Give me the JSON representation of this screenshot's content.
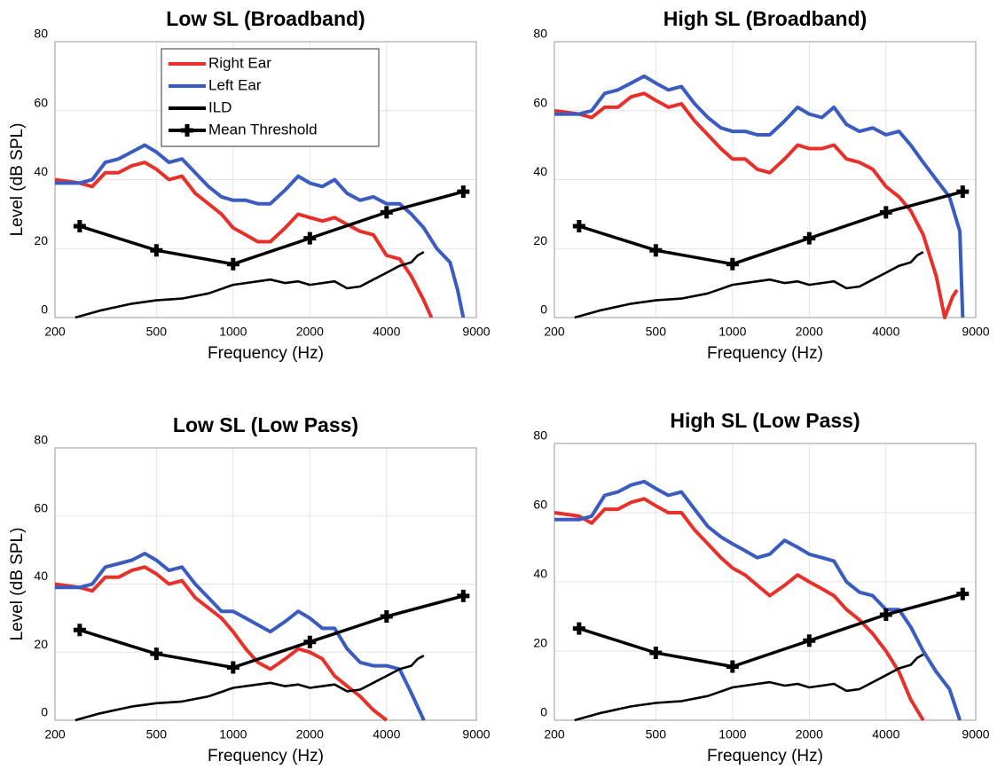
{
  "chart_data": [
    {
      "type": "line",
      "title": "Low SL (Broadband)",
      "xlabel": "Frequency (Hz)",
      "ylabel": "Level (dB SPL)",
      "xscale": "log",
      "xlim": [
        200,
        9000
      ],
      "ylim": [
        0,
        80
      ],
      "xticks": [
        200,
        500,
        1000,
        2000,
        4000,
        9000
      ],
      "yticks": [
        0,
        20,
        40,
        60,
        80
      ],
      "grid": true,
      "legend": "upper center",
      "series": [
        {
          "name": "Right Ear",
          "color": "#e8302a",
          "x": [
            200,
            250,
            280,
            315,
            355,
            400,
            450,
            500,
            560,
            630,
            710,
            800,
            900,
            1000,
            1120,
            1250,
            1400,
            1600,
            1800,
            2000,
            2240,
            2500,
            2800,
            3150,
            3550,
            4000,
            4500,
            5000,
            5600,
            6000
          ],
          "values": [
            40,
            39,
            38,
            42,
            42,
            44,
            45,
            43,
            40,
            41,
            36,
            33,
            30,
            26,
            24,
            22,
            22,
            26,
            30,
            29,
            28,
            29,
            27,
            25,
            24,
            18,
            17,
            12,
            5,
            0
          ]
        },
        {
          "name": "Left Ear",
          "color": "#3a5bbf",
          "x": [
            200,
            250,
            280,
            315,
            355,
            400,
            450,
            500,
            560,
            630,
            710,
            800,
            900,
            1000,
            1120,
            1250,
            1400,
            1600,
            1800,
            2000,
            2240,
            2500,
            2800,
            3150,
            3550,
            4000,
            4500,
            5000,
            5600,
            6300,
            7100,
            7600,
            8000
          ],
          "values": [
            39,
            39,
            40,
            45,
            46,
            48,
            50,
            48,
            45,
            46,
            42,
            38,
            35,
            34,
            34,
            33,
            33,
            37,
            41,
            39,
            38,
            40,
            36,
            34,
            35,
            33,
            33,
            30,
            26,
            20,
            16,
            8,
            0
          ]
        },
        {
          "name": "ILD",
          "color": "#000000",
          "x": [
            240,
            300,
            400,
            500,
            630,
            800,
            1000,
            1250,
            1400,
            1600,
            1800,
            2000,
            2240,
            2500,
            2800,
            3150,
            3550,
            4000,
            4500,
            5000,
            5300,
            5600
          ],
          "values": [
            0,
            2,
            4,
            5,
            5.5,
            7,
            9.5,
            10.5,
            11,
            10,
            10.5,
            9.5,
            10,
            10.5,
            8.5,
            9,
            11,
            13,
            15,
            16,
            18,
            19
          ]
        },
        {
          "name": "Mean Threshold",
          "color": "#000000",
          "marker": "plus",
          "x": [
            250,
            500,
            1000,
            2000,
            4000,
            8000
          ],
          "values": [
            26.5,
            19.5,
            15.5,
            23,
            30.5,
            36.5
          ]
        }
      ]
    },
    {
      "type": "line",
      "title": "High SL (Broadband)",
      "xlabel": "Frequency (Hz)",
      "xscale": "log",
      "xlim": [
        200,
        9000
      ],
      "ylim": [
        0,
        80
      ],
      "xticks": [
        200,
        500,
        1000,
        2000,
        4000,
        9000
      ],
      "yticks": [
        0,
        20,
        40,
        60,
        80
      ],
      "grid": true,
      "series": [
        {
          "color": "#e8302a",
          "x": [
            200,
            250,
            280,
            315,
            355,
            400,
            450,
            500,
            560,
            630,
            710,
            800,
            900,
            1000,
            1120,
            1250,
            1400,
            1600,
            1800,
            2000,
            2240,
            2500,
            2800,
            3150,
            3550,
            4000,
            4500,
            5000,
            5600,
            6300,
            6800,
            7300,
            7600
          ],
          "values": [
            60,
            59,
            58,
            61,
            61,
            64,
            65,
            63,
            61,
            62,
            57,
            53,
            49,
            46,
            46,
            43,
            42,
            46,
            50,
            49,
            49,
            50,
            46,
            45,
            43,
            38,
            35,
            31,
            24,
            12,
            0,
            6,
            8
          ]
        },
        {
          "color": "#3a5bbf",
          "x": [
            200,
            250,
            280,
            315,
            355,
            400,
            450,
            500,
            560,
            630,
            710,
            800,
            900,
            1000,
            1120,
            1250,
            1400,
            1600,
            1800,
            2000,
            2240,
            2500,
            2800,
            3150,
            3550,
            4000,
            4500,
            5000,
            5600,
            6300,
            7100,
            7800,
            8000
          ],
          "values": [
            59,
            59,
            60,
            65,
            66,
            68,
            70,
            68,
            66,
            67,
            62,
            58,
            55,
            54,
            54,
            53,
            53,
            57,
            61,
            59,
            58,
            61,
            56,
            54,
            55,
            53,
            54,
            50,
            45,
            40,
            35,
            25,
            0
          ]
        },
        {
          "color": "#000000",
          "x": [
            240,
            300,
            400,
            500,
            630,
            800,
            1000,
            1250,
            1400,
            1600,
            1800,
            2000,
            2240,
            2500,
            2800,
            3150,
            3550,
            4000,
            4500,
            5000,
            5300,
            5600
          ],
          "values": [
            0,
            2,
            4,
            5,
            5.5,
            7,
            9.5,
            10.5,
            11,
            10,
            10.5,
            9.5,
            10,
            10.5,
            8.5,
            9,
            11,
            13,
            15,
            16,
            18,
            19
          ]
        },
        {
          "color": "#000000",
          "marker": "plus",
          "x": [
            250,
            500,
            1000,
            2000,
            4000,
            8000
          ],
          "values": [
            26.5,
            19.5,
            15.5,
            23,
            30.5,
            36.5
          ]
        }
      ]
    },
    {
      "type": "line",
      "title": "Low SL (Low Pass)",
      "xlabel": "Frequency (Hz)",
      "ylabel": "Level (dB SPL)",
      "xscale": "log",
      "xlim": [
        200,
        9000
      ],
      "ylim": [
        0,
        80
      ],
      "xticks": [
        200,
        500,
        1000,
        2000,
        4000,
        9000
      ],
      "yticks": [
        0,
        20,
        40,
        60,
        80
      ],
      "grid": true,
      "series": [
        {
          "color": "#e8302a",
          "x": [
            200,
            250,
            280,
            315,
            355,
            400,
            450,
            500,
            560,
            630,
            710,
            800,
            900,
            1000,
            1120,
            1250,
            1400,
            1600,
            1800,
            2000,
            2240,
            2500,
            2800,
            3150,
            3550,
            4000
          ],
          "values": [
            40,
            39,
            38,
            42,
            42,
            44,
            45,
            43,
            40,
            41,
            36,
            33,
            30,
            26,
            21,
            17,
            15,
            18,
            21,
            20,
            18,
            13,
            10,
            7,
            3,
            0
          ]
        },
        {
          "color": "#3a5bbf",
          "x": [
            200,
            250,
            280,
            315,
            355,
            400,
            450,
            500,
            560,
            630,
            710,
            800,
            900,
            1000,
            1120,
            1250,
            1400,
            1600,
            1800,
            2000,
            2240,
            2500,
            2800,
            3150,
            3550,
            4000,
            4500,
            5000,
            5600
          ],
          "values": [
            39,
            39,
            40,
            45,
            46,
            47,
            49,
            47,
            44,
            45,
            40,
            36,
            32,
            32,
            30,
            28,
            26,
            29,
            32,
            30,
            27,
            27,
            21,
            17,
            16,
            16,
            15,
            8,
            0
          ]
        },
        {
          "color": "#000000",
          "x": [
            240,
            300,
            400,
            500,
            630,
            800,
            1000,
            1250,
            1400,
            1600,
            1800,
            2000,
            2240,
            2500,
            2800,
            3150,
            3550,
            4000,
            4500,
            5000,
            5300,
            5600
          ],
          "values": [
            0,
            2,
            4,
            5,
            5.5,
            7,
            9.5,
            10.5,
            11,
            10,
            10.5,
            9.5,
            10,
            10.5,
            8.5,
            9,
            11,
            13,
            15,
            16,
            18,
            19
          ]
        },
        {
          "color": "#000000",
          "marker": "plus",
          "x": [
            250,
            500,
            1000,
            2000,
            4000,
            8000
          ],
          "values": [
            26.5,
            19.5,
            15.5,
            23,
            30.5,
            36.5
          ]
        }
      ]
    },
    {
      "type": "line",
      "title": "High SL (Low Pass)",
      "xlabel": "Frequency (Hz)",
      "xscale": "log",
      "xlim": [
        200,
        9000
      ],
      "ylim": [
        0,
        80
      ],
      "xticks": [
        200,
        500,
        1000,
        2000,
        4000,
        9000
      ],
      "yticks": [
        0,
        20,
        40,
        60,
        80
      ],
      "grid": true,
      "series": [
        {
          "color": "#e8302a",
          "x": [
            200,
            250,
            280,
            315,
            355,
            400,
            450,
            500,
            560,
            630,
            710,
            800,
            900,
            1000,
            1120,
            1250,
            1400,
            1600,
            1800,
            2000,
            2240,
            2500,
            2800,
            3150,
            3550,
            4000,
            4500,
            5000,
            5600
          ],
          "values": [
            60,
            59,
            57,
            61,
            61,
            63,
            64,
            62,
            60,
            60,
            55,
            51,
            47,
            44,
            42,
            39,
            36,
            39,
            42,
            40,
            38,
            36,
            32,
            29,
            25,
            20,
            14,
            6,
            0
          ]
        },
        {
          "color": "#3a5bbf",
          "x": [
            200,
            250,
            280,
            315,
            355,
            400,
            450,
            500,
            560,
            630,
            710,
            800,
            900,
            1000,
            1120,
            1250,
            1400,
            1600,
            1800,
            2000,
            2240,
            2500,
            2800,
            3150,
            3550,
            4000,
            4500,
            5000,
            5600,
            6300,
            7100,
            7800
          ],
          "values": [
            58,
            58,
            59,
            65,
            66,
            68,
            69,
            67,
            65,
            66,
            61,
            56,
            53,
            51,
            49,
            47,
            48,
            52,
            50,
            48,
            47,
            46,
            40,
            37,
            36,
            32,
            32,
            27,
            20,
            14,
            9,
            0
          ]
        },
        {
          "color": "#000000",
          "x": [
            240,
            300,
            400,
            500,
            630,
            800,
            1000,
            1250,
            1400,
            1600,
            1800,
            2000,
            2240,
            2500,
            2800,
            3150,
            3550,
            4000,
            4500,
            5000,
            5300,
            5600
          ],
          "values": [
            0,
            2,
            4,
            5,
            5.5,
            7,
            9.5,
            10.5,
            11,
            10,
            10.5,
            9.5,
            10,
            10.5,
            8.5,
            9,
            11,
            13,
            15,
            16,
            18,
            19
          ]
        },
        {
          "color": "#000000",
          "marker": "plus",
          "x": [
            250,
            500,
            1000,
            2000,
            4000,
            8000
          ],
          "values": [
            26.5,
            19.5,
            15.5,
            23,
            30.5,
            36.5
          ]
        }
      ]
    }
  ]
}
